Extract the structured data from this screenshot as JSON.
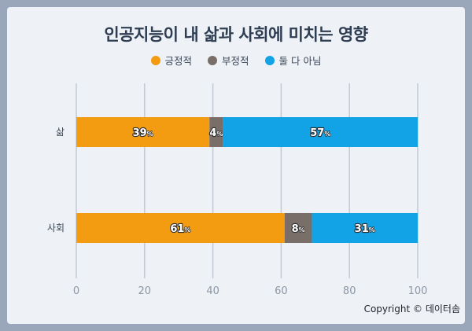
{
  "chart_data": {
    "type": "bar",
    "stacked": true,
    "orientation": "horizontal",
    "title": "인공지능이 내 삶과 사회에 미치는 영향",
    "categories": [
      "삶",
      "사회"
    ],
    "series": [
      {
        "name": "긍정적",
        "color": "#f39c12",
        "values": [
          39,
          61
        ]
      },
      {
        "name": "부정적",
        "color": "#7a6e68",
        "values": [
          4,
          8
        ]
      },
      {
        "name": "둘 다 아님",
        "color": "#12a2e6",
        "values": [
          57,
          31
        ]
      }
    ],
    "xlim": [
      0,
      100
    ],
    "xticks": [
      0,
      20,
      40,
      60,
      80,
      100
    ],
    "value_suffix": "%",
    "grid": true,
    "legend_position": "top"
  },
  "footer": {
    "copyright": "Copyright © 데이터솜"
  }
}
